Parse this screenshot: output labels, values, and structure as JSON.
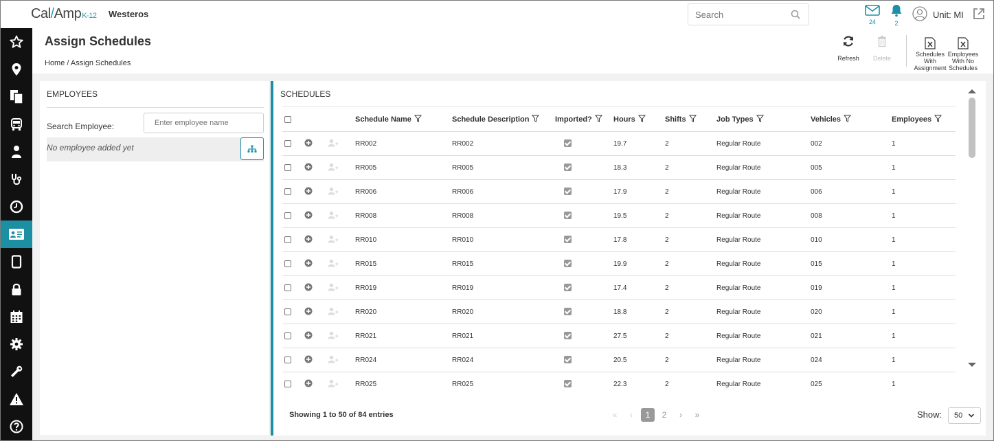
{
  "app": {
    "logo": {
      "part1": "Cal",
      "slash": "/",
      "part2": "Amp",
      "suffix": "K-12"
    },
    "tenant": "Westeros"
  },
  "topbar": {
    "search_placeholder": "Search",
    "mail_count": "24",
    "notification_count": "2",
    "user_label": "Unit: MI"
  },
  "sidebar": {
    "items": [
      {
        "icon": "star-icon",
        "active": false
      },
      {
        "icon": "map-pin-icon",
        "active": false
      },
      {
        "icon": "documents-icon",
        "active": false
      },
      {
        "icon": "bus-icon",
        "active": false
      },
      {
        "icon": "person-icon",
        "active": false
      },
      {
        "icon": "stethoscope-icon",
        "active": false
      },
      {
        "icon": "clock-icon",
        "active": false
      },
      {
        "icon": "id-card-icon",
        "active": true
      },
      {
        "icon": "tablet-icon",
        "active": false
      },
      {
        "icon": "lock-icon",
        "active": false
      },
      {
        "icon": "calendar-icon",
        "active": false
      },
      {
        "icon": "gear-icon",
        "active": false
      },
      {
        "icon": "wrench-icon",
        "active": false
      },
      {
        "icon": "warning-icon",
        "active": false
      },
      {
        "icon": "help-icon",
        "active": false
      }
    ]
  },
  "page": {
    "title": "Assign Schedules",
    "breadcrumb": {
      "home": "Home",
      "separator": "/",
      "current": "Assign Schedules"
    }
  },
  "toolbar": {
    "refresh": "Refresh",
    "delete": "Delete",
    "export_with_assignment": [
      "Schedules",
      "With",
      "Assignment"
    ],
    "export_no_schedules": [
      "Employees",
      "With No",
      "Schedules"
    ]
  },
  "employees": {
    "title": "EMPLOYEES",
    "search_label": "Search Employee:",
    "search_placeholder": "Enter employee name",
    "empty_text": "No employee added yet"
  },
  "schedules": {
    "title": "SCHEDULES",
    "columns": [
      "Schedule Name",
      "Schedule Description",
      "Imported?",
      "Hours",
      "Shifts",
      "Job Types",
      "Vehicles",
      "Employees"
    ],
    "rows": [
      {
        "name": "RR002",
        "description": "RR002",
        "imported": true,
        "hours": "19.7",
        "shifts": "2",
        "job_types": "Regular Route",
        "vehicles": "002",
        "employees": "1"
      },
      {
        "name": "RR005",
        "description": "RR005",
        "imported": true,
        "hours": "18.3",
        "shifts": "2",
        "job_types": "Regular Route",
        "vehicles": "005",
        "employees": "1"
      },
      {
        "name": "RR006",
        "description": "RR006",
        "imported": true,
        "hours": "17.9",
        "shifts": "2",
        "job_types": "Regular Route",
        "vehicles": "006",
        "employees": "1"
      },
      {
        "name": "RR008",
        "description": "RR008",
        "imported": true,
        "hours": "19.5",
        "shifts": "2",
        "job_types": "Regular Route",
        "vehicles": "008",
        "employees": "1"
      },
      {
        "name": "RR010",
        "description": "RR010",
        "imported": true,
        "hours": "17.8",
        "shifts": "2",
        "job_types": "Regular Route",
        "vehicles": "010",
        "employees": "1"
      },
      {
        "name": "RR015",
        "description": "RR015",
        "imported": true,
        "hours": "19.9",
        "shifts": "2",
        "job_types": "Regular Route",
        "vehicles": "015",
        "employees": "1"
      },
      {
        "name": "RR019",
        "description": "RR019",
        "imported": true,
        "hours": "17.4",
        "shifts": "2",
        "job_types": "Regular Route",
        "vehicles": "019",
        "employees": "1"
      },
      {
        "name": "RR020",
        "description": "RR020",
        "imported": true,
        "hours": "18.8",
        "shifts": "2",
        "job_types": "Regular Route",
        "vehicles": "020",
        "employees": "1"
      },
      {
        "name": "RR021",
        "description": "RR021",
        "imported": true,
        "hours": "27.5",
        "shifts": "2",
        "job_types": "Regular Route",
        "vehicles": "021",
        "employees": "1"
      },
      {
        "name": "RR024",
        "description": "RR024",
        "imported": true,
        "hours": "20.5",
        "shifts": "2",
        "job_types": "Regular Route",
        "vehicles": "024",
        "employees": "1"
      },
      {
        "name": "RR025",
        "description": "RR025",
        "imported": true,
        "hours": "22.3",
        "shifts": "2",
        "job_types": "Regular Route",
        "vehicles": "025",
        "employees": "1"
      }
    ],
    "footer_info": "Showing 1 to 50 of 84 entries",
    "pages": [
      "1",
      "2"
    ],
    "current_page": "1",
    "show_label": "Show:",
    "page_size": "50"
  },
  "colors": {
    "accent": "#1d8fa3",
    "sidebar": "#111111"
  }
}
